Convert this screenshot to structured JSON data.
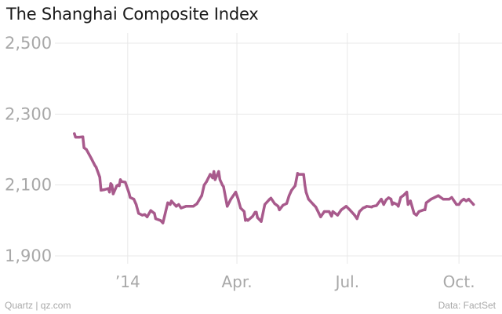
{
  "header": {
    "title": "The Shanghai Composite Index"
  },
  "footer": {
    "source_left": "Quartz | qz.com",
    "source_right": "Data: FactSet"
  },
  "colors": {
    "line": "#a85a8c",
    "grid": "#e8e8e8",
    "text": "#a8a8a8"
  },
  "chart_data": {
    "type": "line",
    "title": "The Shanghai Composite Index",
    "xlabel": "",
    "ylabel": "",
    "ylim": [
      1900,
      2500
    ],
    "y_ticks": [
      1900,
      2100,
      2300,
      2500
    ],
    "y_tick_labels": [
      "1,900",
      "2,100",
      "2,300",
      "2,500"
    ],
    "x_ticks": [
      "2014-01-01",
      "2014-04-01",
      "2014-07-01",
      "2014-10-01"
    ],
    "x_tick_labels": [
      "’14",
      "Apr.",
      "Jul.",
      "Oct."
    ],
    "xlim": [
      "2013-11-02",
      "2014-10-30"
    ],
    "grid": true,
    "series": [
      {
        "points": [
          [
            "2013-11-18",
            2245
          ],
          [
            "2013-11-19",
            2235
          ],
          [
            "2013-11-22",
            2235
          ],
          [
            "2013-11-25",
            2236
          ],
          [
            "2013-11-26",
            2205
          ],
          [
            "2013-11-28",
            2200
          ],
          [
            "2013-12-02",
            2175
          ],
          [
            "2013-12-05",
            2155
          ],
          [
            "2013-12-06",
            2150
          ],
          [
            "2013-12-09",
            2122
          ],
          [
            "2013-12-10",
            2085
          ],
          [
            "2013-12-13",
            2087
          ],
          [
            "2013-12-16",
            2090
          ],
          [
            "2013-12-17",
            2080
          ],
          [
            "2013-12-18",
            2104
          ],
          [
            "2013-12-19",
            2100
          ],
          [
            "2013-12-20",
            2075
          ],
          [
            "2013-12-23",
            2098
          ],
          [
            "2013-12-24",
            2100
          ],
          [
            "2013-12-25",
            2098
          ],
          [
            "2013-12-26",
            2115
          ],
          [
            "2013-12-27",
            2110
          ],
          [
            "2013-12-30",
            2108
          ],
          [
            "2014-01-02",
            2078
          ],
          [
            "2014-01-03",
            2065
          ],
          [
            "2014-01-06",
            2060
          ],
          [
            "2014-01-08",
            2045
          ],
          [
            "2014-01-10",
            2020
          ],
          [
            "2014-01-13",
            2015
          ],
          [
            "2014-01-15",
            2017
          ],
          [
            "2014-01-17",
            2010
          ],
          [
            "2014-01-20",
            2028
          ],
          [
            "2014-01-21",
            2025
          ],
          [
            "2014-01-23",
            2020
          ],
          [
            "2014-01-24",
            2005
          ],
          [
            "2014-01-28",
            2000
          ],
          [
            "2014-01-30",
            1993
          ],
          [
            "2014-02-03",
            2050
          ],
          [
            "2014-02-05",
            2045
          ],
          [
            "2014-02-06",
            2055
          ],
          [
            "2014-02-10",
            2040
          ],
          [
            "2014-02-12",
            2045
          ],
          [
            "2014-02-14",
            2035
          ],
          [
            "2014-02-18",
            2040
          ],
          [
            "2014-02-24",
            2040
          ],
          [
            "2014-02-27",
            2047
          ],
          [
            "2014-03-03",
            2070
          ],
          [
            "2014-03-05",
            2100
          ],
          [
            "2014-03-07",
            2110
          ],
          [
            "2014-03-10",
            2130
          ],
          [
            "2014-03-12",
            2120
          ],
          [
            "2014-03-13",
            2138
          ],
          [
            "2014-03-14",
            2115
          ],
          [
            "2014-03-17",
            2138
          ],
          [
            "2014-03-18",
            2115
          ],
          [
            "2014-03-20",
            2100
          ],
          [
            "2014-03-21",
            2095
          ],
          [
            "2014-03-24",
            2040
          ],
          [
            "2014-03-27",
            2060
          ],
          [
            "2014-03-31",
            2080
          ],
          [
            "2014-04-02",
            2060
          ],
          [
            "2014-04-04",
            2035
          ],
          [
            "2014-04-07",
            2025
          ],
          [
            "2014-04-08",
            2000
          ],
          [
            "2014-04-09",
            2003
          ],
          [
            "2014-04-10",
            2000
          ],
          [
            "2014-04-14",
            2012
          ],
          [
            "2014-04-16",
            2023
          ],
          [
            "2014-04-17",
            2023
          ],
          [
            "2014-04-18",
            2008
          ],
          [
            "2014-04-21",
            1997
          ],
          [
            "2014-04-24",
            2045
          ],
          [
            "2014-04-28",
            2060
          ],
          [
            "2014-04-29",
            2063
          ],
          [
            "2014-05-02",
            2048
          ],
          [
            "2014-05-05",
            2040
          ],
          [
            "2014-05-06",
            2030
          ],
          [
            "2014-05-09",
            2043
          ],
          [
            "2014-05-12",
            2048
          ],
          [
            "2014-05-14",
            2070
          ],
          [
            "2014-05-16",
            2085
          ],
          [
            "2014-05-19",
            2098
          ],
          [
            "2014-05-21",
            2133
          ],
          [
            "2014-05-22",
            2130
          ],
          [
            "2014-05-26",
            2130
          ],
          [
            "2014-05-27",
            2100
          ],
          [
            "2014-05-28",
            2080
          ],
          [
            "2014-05-30",
            2060
          ],
          [
            "2014-06-03",
            2045
          ],
          [
            "2014-06-05",
            2038
          ],
          [
            "2014-06-09",
            2010
          ],
          [
            "2014-06-11",
            2020
          ],
          [
            "2014-06-12",
            2025
          ],
          [
            "2014-06-16",
            2025
          ],
          [
            "2014-06-18",
            2012
          ],
          [
            "2014-06-19",
            2025
          ],
          [
            "2014-06-23",
            2015
          ],
          [
            "2014-06-26",
            2030
          ],
          [
            "2014-06-30",
            2040
          ],
          [
            "2014-07-03",
            2030
          ],
          [
            "2014-07-07",
            2015
          ],
          [
            "2014-07-09",
            2005
          ],
          [
            "2014-07-11",
            2025
          ],
          [
            "2014-07-14",
            2035
          ],
          [
            "2014-07-16",
            2038
          ],
          [
            "2014-07-17",
            2040
          ],
          [
            "2014-07-21",
            2038
          ],
          [
            "2014-07-22",
            2040
          ],
          [
            "2014-07-25",
            2042
          ],
          [
            "2014-07-29",
            2060
          ],
          [
            "2014-07-31",
            2045
          ],
          [
            "2014-08-02",
            2058
          ],
          [
            "2014-08-04",
            2064
          ],
          [
            "2014-08-06",
            2060
          ],
          [
            "2014-08-07",
            2045
          ],
          [
            "2014-08-08",
            2050
          ],
          [
            "2014-08-11",
            2045
          ],
          [
            "2014-08-12",
            2040
          ],
          [
            "2014-08-14",
            2065
          ],
          [
            "2014-08-16",
            2070
          ],
          [
            "2014-08-19",
            2080
          ],
          [
            "2014-08-20",
            2045
          ],
          [
            "2014-08-22",
            2055
          ],
          [
            "2014-08-25",
            2020
          ],
          [
            "2014-08-27",
            2015
          ],
          [
            "2014-08-29",
            2025
          ],
          [
            "2014-09-02",
            2030
          ],
          [
            "2014-09-03",
            2030
          ],
          [
            "2014-09-04",
            2050
          ],
          [
            "2014-09-08",
            2060
          ],
          [
            "2014-09-11",
            2065
          ],
          [
            "2014-09-14",
            2070
          ],
          [
            "2014-09-16",
            2065
          ],
          [
            "2014-09-18",
            2060
          ],
          [
            "2014-09-20",
            2060
          ],
          [
            "2014-09-23",
            2060
          ],
          [
            "2014-09-25",
            2065
          ],
          [
            "2014-09-29",
            2045
          ],
          [
            "2014-10-01",
            2045
          ],
          [
            "2014-10-03",
            2055
          ],
          [
            "2014-10-05",
            2060
          ],
          [
            "2014-10-07",
            2055
          ],
          [
            "2014-10-09",
            2060
          ],
          [
            "2014-10-13",
            2045
          ]
        ]
      }
    ]
  }
}
